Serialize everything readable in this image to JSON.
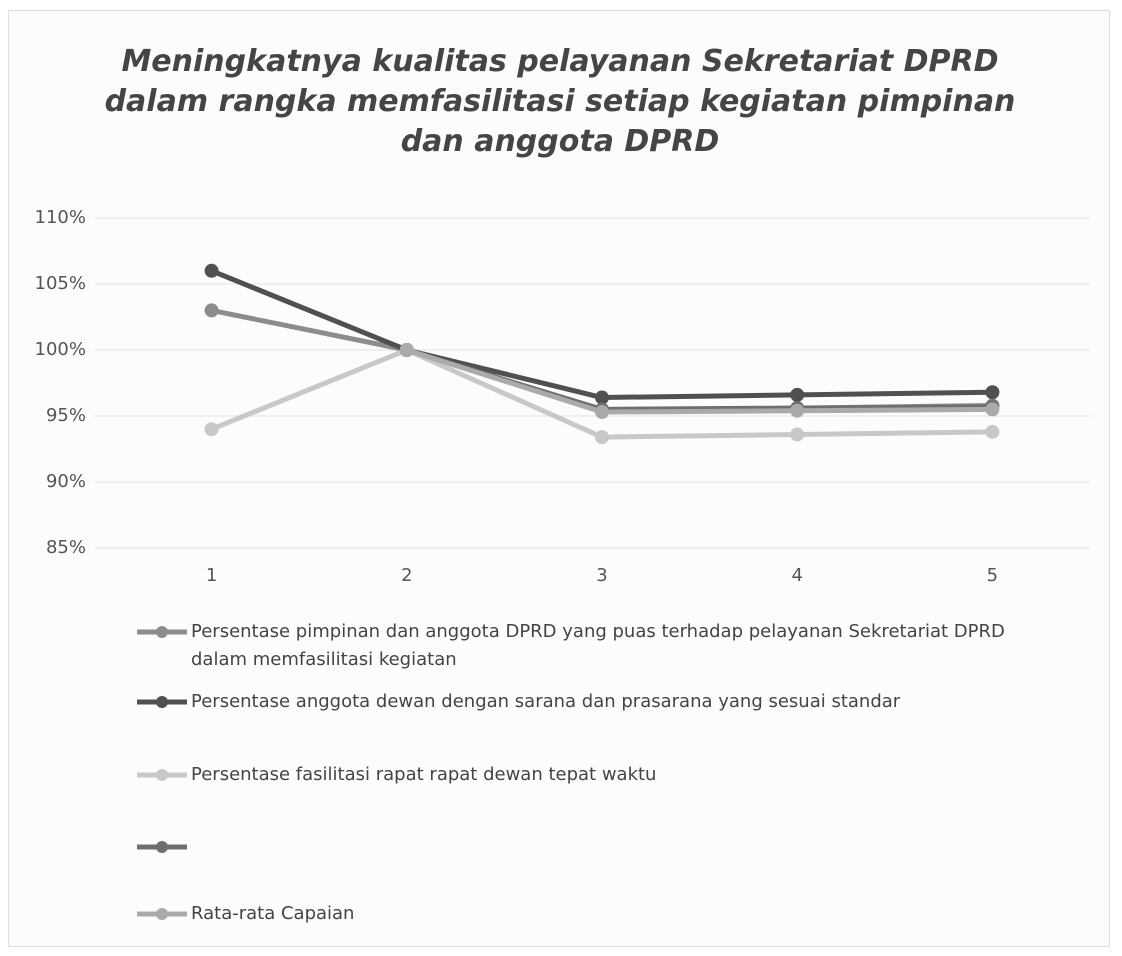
{
  "chart_data": {
    "type": "line",
    "title": "Meningkatnya kualitas pelayanan Sekretariat DPRD\ndalam rangka memfasilitasi setiap kegiatan pimpinan\ndan anggota DPRD",
    "categories": [
      "1",
      "2",
      "3",
      "4",
      "5"
    ],
    "series": [
      {
        "name": "Persentase pimpinan dan anggota DPRD yang puas terhadap pelayanan Sekretariat DPRD dalam memfasilitasi kegiatan",
        "color": "#8c8c8c",
        "values": [
          103,
          100,
          95.4,
          95.6,
          95.8
        ]
      },
      {
        "name": "Persentase anggota dewan dengan sarana dan prasarana yang sesuai standar",
        "color": "#505050",
        "values": [
          106,
          100,
          96.4,
          96.6,
          96.8
        ]
      },
      {
        "name": "Persentase fasilitasi rapat rapat dewan tepat waktu",
        "color": "#c8c8c8",
        "values": [
          94,
          100,
          93.4,
          93.6,
          93.8
        ]
      },
      {
        "color": "#6e6e6e",
        "values": [
          null,
          100,
          95.5,
          95.6,
          95.7
        ]
      },
      {
        "name": "Rata-rata Capaian",
        "color": "#aaaaaa",
        "values": [
          null,
          100,
          95.3,
          95.4,
          95.5
        ]
      }
    ],
    "ylim": [
      85,
      110
    ],
    "yticks": [
      {
        "value": 85,
        "label": "85%"
      },
      {
        "value": 90,
        "label": "90%"
      },
      {
        "value": 95,
        "label": "95%"
      },
      {
        "value": 100,
        "label": "100%"
      },
      {
        "value": 105,
        "label": "105%"
      },
      {
        "value": 110,
        "label": "110%"
      }
    ],
    "grid": true
  }
}
